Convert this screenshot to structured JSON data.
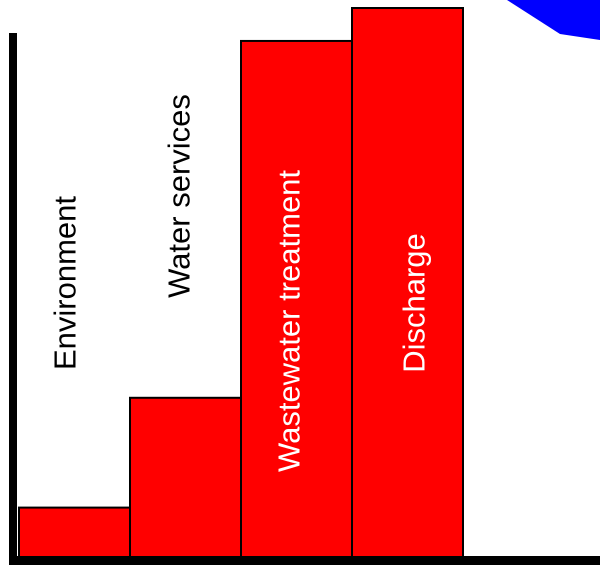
{
  "chart_data": {
    "type": "bar",
    "categories": [
      "Environment",
      "Water services",
      "Wastewater treatment",
      "Discharge"
    ],
    "values": [
      9,
      29,
      94,
      100
    ],
    "value_scale": "relative, 100 = tallest bar",
    "title": "",
    "xlabel": "",
    "ylabel": "",
    "grid": false,
    "legend": "none",
    "bar_color": "#ff0000",
    "bar_edge_color": "#000000",
    "axis_color": "#000000",
    "label_colors": [
      "#000000",
      "#000000",
      "#ffffff",
      "#ffffff"
    ],
    "accent_color": "#0000ff"
  }
}
